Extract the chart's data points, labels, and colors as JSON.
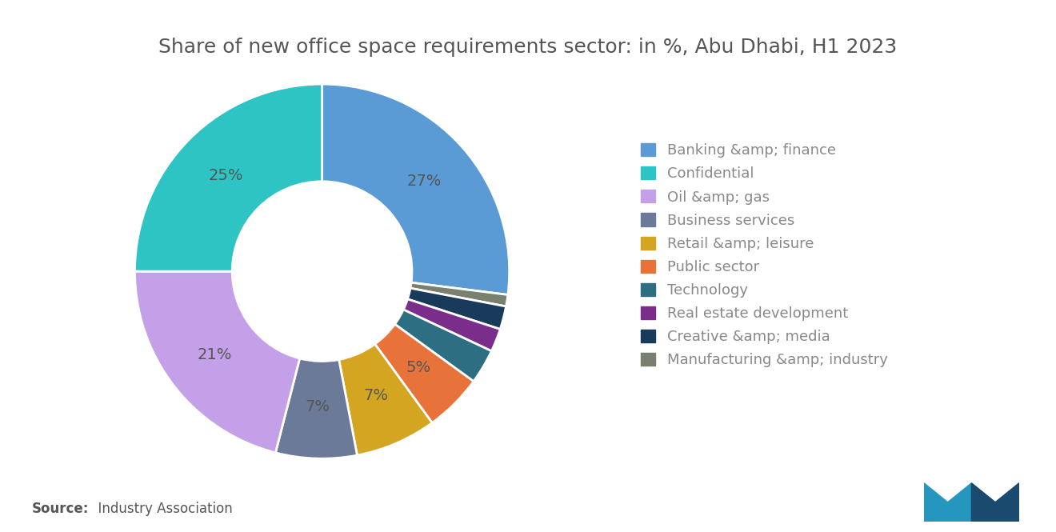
{
  "title": "Share of new office space requirements sector: in %, Abu Dhabi, H1 2023",
  "labels": [
    "Banking &amp; finance",
    "Manufacturing &amp; industry",
    "Creative &amp; media",
    "Real estate development",
    "Technology",
    "Public sector",
    "Retail &amp; leisure",
    "Business services",
    "Oil &amp; gas",
    "Confidential"
  ],
  "legend_labels": [
    "Banking &amp; finance",
    "Confidential",
    "Oil &amp; gas",
    "Business services",
    "Retail &amp; leisure",
    "Public sector",
    "Technology",
    "Real estate development",
    "Creative &amp; media",
    "Manufacturing &amp; industry"
  ],
  "values": [
    27,
    1,
    2,
    2,
    3,
    5,
    7,
    7,
    21,
    25
  ],
  "colors": [
    "#5B9BD5",
    "#7A8070",
    "#1A3A5C",
    "#7B2D8B",
    "#2E6E82",
    "#E8733A",
    "#D4A520",
    "#6B7A99",
    "#C4A0E8",
    "#2EC4C4"
  ],
  "legend_colors": [
    "#5B9BD5",
    "#2EC4C4",
    "#C4A0E8",
    "#6B7A99",
    "#D4A520",
    "#E8733A",
    "#2E6E82",
    "#7B2D8B",
    "#1A3A5C",
    "#7A8070"
  ],
  "label_values": [
    "27%",
    "",
    "",
    "",
    "",
    "5%",
    "7%",
    "7%",
    "21%",
    "25%"
  ],
  "label_color": "#555555",
  "source_bold": "Source:",
  "source_normal": "  Industry Association",
  "background_color": "#ffffff",
  "title_fontsize": 18,
  "legend_fontsize": 13,
  "label_fontsize": 14,
  "donut_width": 0.52,
  "startangle": 90,
  "logo_color_left": "#2596BE",
  "logo_color_right": "#1A4A6E"
}
